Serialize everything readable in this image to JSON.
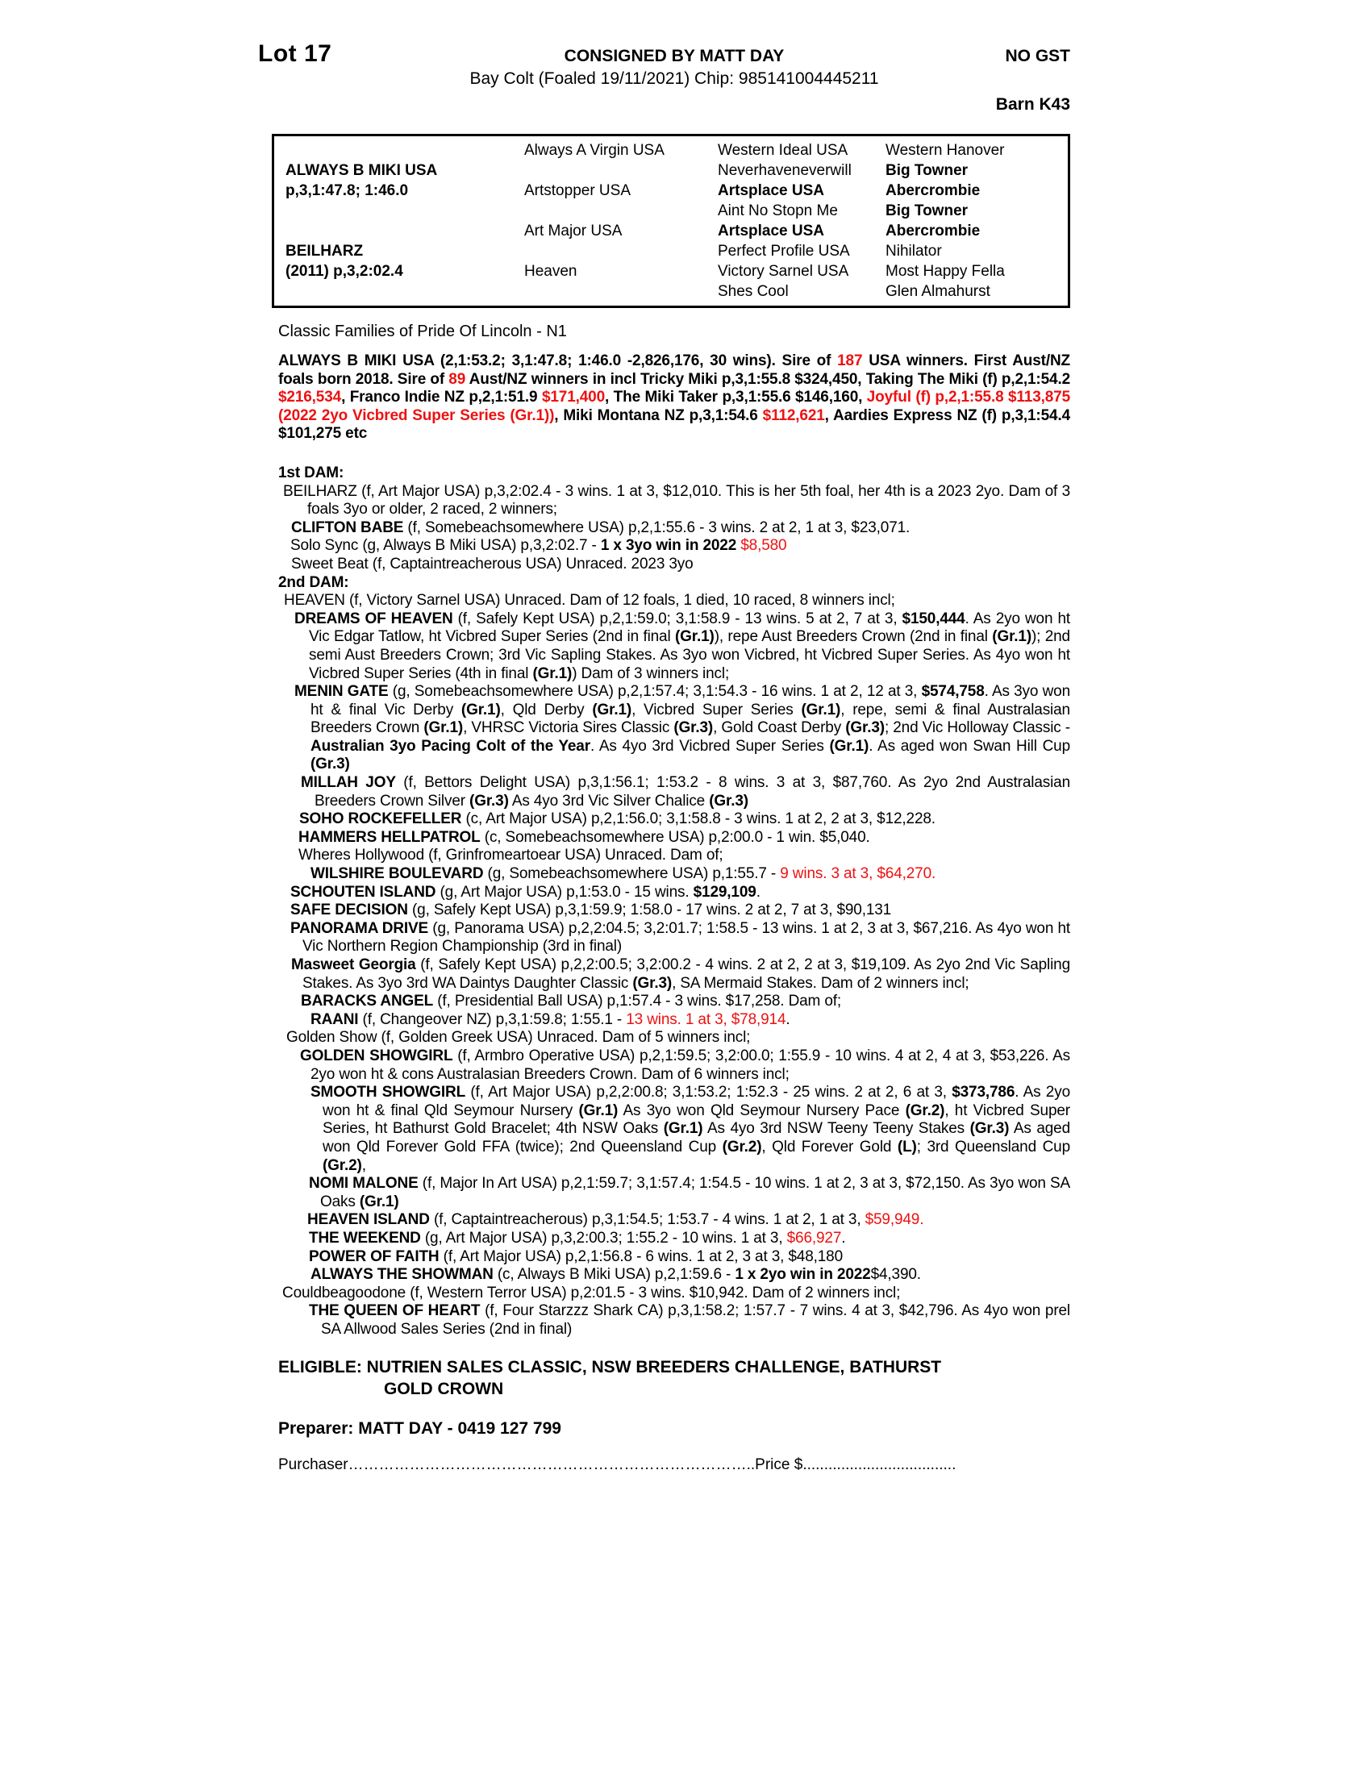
{
  "colors": {
    "red": "#ee1111"
  },
  "header": {
    "lot": "Lot 17",
    "consigned": "CONSIGNED BY MATT DAY",
    "no_gst": "NO GST",
    "subtitle": "Bay Colt (Foaled 19/11/2021) Chip: 985141004445211",
    "barn": "Barn K43"
  },
  "pedigree": {
    "rows": [
      {
        "c2": "Always A Virgin USA",
        "c3": "Western Ideal USA",
        "c4": "Western Hanover"
      },
      {
        "c1": "ALWAYS B MIKI USA",
        "c3": "Neverhaveneverwill",
        "c4": "Big Towner"
      },
      {
        "c1": "p,3,1:47.8; 1:46.0",
        "c2": "Artstopper USA",
        "c3": "Artsplace USA",
        "c4": "Abercrombie"
      },
      {
        "c3": "Aint No Stopn Me",
        "c4": "Big Towner"
      },
      {
        "c2": "Art Major USA",
        "c3": "Artsplace USA",
        "c4": "Abercrombie"
      },
      {
        "c1": "BEILHARZ",
        "c3": "Perfect Profile USA",
        "c4": "Nihilator"
      },
      {
        "c1": "(2011) p,3,2:02.4",
        "c2": "Heaven",
        "c3": "Victory Sarnel USA",
        "c4": "Most Happy Fella"
      },
      {
        "c3": "Shes Cool",
        "c4": "Glen Almahurst"
      }
    ]
  },
  "classic_families": "Classic Families of Pride Of Lincoln - N1",
  "paras": {
    "sire": {
      "segments": [
        {
          "t": "ALWAYS B MIKI USA (2,1:53.2; 3,1:47.8; 1:46.0 -2,826,176, 30 wins). Sire of ",
          "s": "b"
        },
        {
          "t": "187",
          "s": "br"
        },
        {
          "t": " USA winners. First Aust/NZ foals born 2018. Sire of ",
          "s": "b"
        },
        {
          "t": "89",
          "s": "br"
        },
        {
          "t": " Aust/NZ winners in incl Tricky Miki p,3,1:55.8 $324,450, Taking The Miki (f) p,2,1:54.2 ",
          "s": "b"
        },
        {
          "t": "$216,534",
          "s": "br"
        },
        {
          "t": ", Franco Indie NZ p,2,1:51.9 ",
          "s": "b"
        },
        {
          "t": "$171,400",
          "s": "br"
        },
        {
          "t": ", The Miki Taker p,3,1:55.6 $146,160, ",
          "s": "b"
        },
        {
          "t": "Joyful (f) p,2,1:55.8 $113,875 (2022 2yo Vicbred Super Series (Gr.1))",
          "s": "br"
        },
        {
          "t": ", Miki Montana NZ p,3,1:54.6 ",
          "s": "b"
        },
        {
          "t": "$112,621",
          "s": "br"
        },
        {
          "t": ", Aardies Express NZ (f) p,3,1:54.4 $101,275 etc",
          "s": "b"
        }
      ]
    },
    "dam1_heading": "1st DAM:",
    "beilharz": {
      "segments": [
        {
          "t": "BEILHARZ (f, Art Major USA) p,3,2:02.4 - 3 wins. 1 at 3, $12,010. This is her 5th foal, her 4th is a 2023 2yo. Dam of 3 foals 3yo or older, 2 raced, 2 winners;"
        }
      ]
    },
    "clifton_babe": {
      "segments": [
        {
          "t": "CLIFTON BABE",
          "s": "b"
        },
        {
          "t": " (f, Somebeachsomewhere USA) p,2,1:55.6 - 3 wins. 2 at 2, 1 at 3, $23,071."
        }
      ]
    },
    "solo_sync": {
      "segments": [
        {
          "t": "Solo Sync (g, Always B Miki USA) p,3,2:02.7 - "
        },
        {
          "t": "1 x 3yo win in 2022",
          "s": "b"
        },
        {
          "t": " $8,580",
          "s": "r"
        }
      ]
    },
    "sweet_beat": {
      "segments": [
        {
          "t": "Sweet Beat (f, Captaintreacherous USA) Unraced. 2023 3yo"
        }
      ]
    },
    "dam2_heading": "2nd DAM:",
    "heaven": {
      "segments": [
        {
          "t": "HEAVEN (f, Victory Sarnel USA) Unraced. Dam of 12 foals, 1 died, 10 raced, 8 winners incl;"
        }
      ]
    },
    "dreams_of_heaven": {
      "segments": [
        {
          "t": "DREAMS OF HEAVEN",
          "s": "b"
        },
        {
          "t": " (f, Safely Kept USA) p,2,1:59.0; 3,1:58.9 - 13 wins. 5 at 2, 7 at 3, "
        },
        {
          "t": "$150,444",
          "s": "b"
        },
        {
          "t": ". As 2yo won ht Vic Edgar Tatlow, ht Vicbred Super Series (2nd in final "
        },
        {
          "t": "(Gr.1)",
          "s": "b"
        },
        {
          "t": "), repe Aust Breeders Crown (2nd in final "
        },
        {
          "t": "(Gr.1)",
          "s": "b"
        },
        {
          "t": "); 2nd semi Aust Breeders Crown; 3rd Vic Sapling Stakes. As 3yo won Vicbred, ht Vicbred Super Series. As 4yo won ht Vicbred Super Series (4th in final "
        },
        {
          "t": "(Gr.1)",
          "s": "b"
        },
        {
          "t": ") Dam of 3 winners incl;"
        }
      ]
    },
    "menin_gate": {
      "segments": [
        {
          "t": "MENIN GATE",
          "s": "b"
        },
        {
          "t": " (g, Somebeachsomewhere USA) p,2,1:57.4; 3,1:54.3 - 16 wins. 1 at 2, 12 at 3, "
        },
        {
          "t": "$574,758",
          "s": "b"
        },
        {
          "t": ". As 3yo won ht & final Vic Derby "
        },
        {
          "t": "(Gr.1)",
          "s": "b"
        },
        {
          "t": ", Qld Derby "
        },
        {
          "t": "(Gr.1)",
          "s": "b"
        },
        {
          "t": ", Vicbred Super Series "
        },
        {
          "t": "(Gr.1)",
          "s": "b"
        },
        {
          "t": ", repe, semi & final Australasian Breeders Crown "
        },
        {
          "t": "(Gr.1)",
          "s": "b"
        },
        {
          "t": ", VHRSC Victoria Sires Classic "
        },
        {
          "t": "(Gr.3)",
          "s": "b"
        },
        {
          "t": ", Gold Coast Derby "
        },
        {
          "t": "(Gr.3)",
          "s": "b"
        },
        {
          "t": "; 2nd Vic Holloway Classic - "
        },
        {
          "t": "Australian 3yo Pacing Colt of the Year",
          "s": "b"
        },
        {
          "t": ". As 4yo 3rd Vicbred Super Series "
        },
        {
          "t": "(Gr.1)",
          "s": "b"
        },
        {
          "t": ". As aged won Swan Hill Cup "
        },
        {
          "t": "(Gr.3)",
          "s": "b"
        }
      ]
    },
    "millah_joy": {
      "segments": [
        {
          "t": "MILLAH JOY",
          "s": "b"
        },
        {
          "t": " (f, Bettors Delight USA) p,3,1:56.1; 1:53.2 - 8 wins. 3 at 3, $87,760. As 2yo 2nd Australasian Breeders Crown Silver "
        },
        {
          "t": "(Gr.3)",
          "s": "b"
        },
        {
          "t": " As 4yo 3rd Vic Silver Chalice "
        },
        {
          "t": "(Gr.3)",
          "s": "b"
        }
      ]
    },
    "soho_rockefeller": {
      "segments": [
        {
          "t": "SOHO ROCKEFELLER",
          "s": "b"
        },
        {
          "t": " (c, Art Major USA) p,2,1:56.0; 3,1:58.8 - 3 wins. 1 at 2, 2 at 3, $12,228."
        }
      ]
    },
    "hammers_hellpatrol": {
      "segments": [
        {
          "t": "HAMMERS HELLPATROL",
          "s": "b"
        },
        {
          "t": " (c, Somebeachsomewhere USA) p,2:00.0 - 1 win. $5,040."
        }
      ]
    },
    "wheres_hollywood": {
      "segments": [
        {
          "t": "Wheres Hollywood (f, Grinfromeartoear USA) Unraced. Dam of;"
        }
      ]
    },
    "wilshire_boulevard": {
      "segments": [
        {
          "t": "WILSHIRE BOULEVARD",
          "s": "b"
        },
        {
          "t": " (g, Somebeachsomewhere USA) p,1:55.7 - "
        },
        {
          "t": "9 wins. 3 at 3, $64,270.",
          "s": "r"
        }
      ]
    },
    "schouten_island": {
      "segments": [
        {
          "t": "SCHOUTEN ISLAND",
          "s": "b"
        },
        {
          "t": " (g, Art Major USA) p,1:53.0 - 15 wins. "
        },
        {
          "t": "$129,109",
          "s": "b"
        },
        {
          "t": "."
        }
      ]
    },
    "safe_decision": {
      "segments": [
        {
          "t": "SAFE DECISION",
          "s": "b"
        },
        {
          "t": " (g, Safely Kept USA) p,3,1:59.9; 1:58.0 - 17 wins. 2 at 2, 7 at 3, $90,131"
        }
      ]
    },
    "panorama_drive": {
      "segments": [
        {
          "t": "PANORAMA DRIVE",
          "s": "b"
        },
        {
          "t": " (g, Panorama USA) p,2,2:04.5; 3,2:01.7; 1:58.5 - 13 wins. 1 at 2, 3 at 3, $67,216. As 4yo won ht Vic Northern Region Championship (3rd in final)"
        }
      ]
    },
    "masweet_georgia": {
      "segments": [
        {
          "t": "Masweet Georgia",
          "s": "b"
        },
        {
          "t": " (f, Safely Kept USA) p,2,2:00.5; 3,2:00.2 - 4 wins. 2 at 2, 2 at 3, $19,109. As 2yo 2nd Vic Sapling Stakes. As 3yo 3rd WA Daintys Daughter Classic "
        },
        {
          "t": "(Gr.3)",
          "s": "b"
        },
        {
          "t": ", SA Mermaid Stakes. Dam of 2 winners incl;"
        }
      ]
    },
    "baracks_angel": {
      "segments": [
        {
          "t": "BARACKS ANGEL",
          "s": "b"
        },
        {
          "t": " (f, Presidential Ball USA) p,1:57.4 - 3 wins. $17,258. Dam of;"
        }
      ]
    },
    "raani": {
      "segments": [
        {
          "t": "RAANI",
          "s": "b"
        },
        {
          "t": " (f, Changeover NZ) p,3,1:59.8; 1:55.1 - "
        },
        {
          "t": "13 wins. 1 at 3, $78,914",
          "s": "r"
        },
        {
          "t": "."
        }
      ]
    },
    "golden_show": {
      "segments": [
        {
          "t": "Golden Show (f, Golden Greek USA) Unraced. Dam of 5 winners incl;"
        }
      ]
    },
    "golden_showgirl": {
      "segments": [
        {
          "t": "GOLDEN SHOWGIRL",
          "s": "b"
        },
        {
          "t": " (f, Armbro Operative USA) p,2,1:59.5; 3,2:00.0; 1:55.9 - 10 wins. 4 at 2, 4 at 3, $53,226. As 2yo won ht & cons Australasian Breeders Crown. Dam of 6 winners incl;"
        }
      ]
    },
    "smooth_showgirl": {
      "segments": [
        {
          "t": "SMOOTH SHOWGIRL",
          "s": "b"
        },
        {
          "t": " (f, Art Major USA) p,2,2:00.8; 3,1:53.2; 1:52.3 - 25 wins. 2 at 2, 6 at 3, "
        },
        {
          "t": "$373,786",
          "s": "b"
        },
        {
          "t": ". As 2yo won ht & final Qld Seymour Nursery "
        },
        {
          "t": "(Gr.1)",
          "s": "b"
        },
        {
          "t": " As 3yo won Qld Seymour Nursery Pace "
        },
        {
          "t": "(Gr.2)",
          "s": "b"
        },
        {
          "t": ", ht Vicbred Super Series, ht Bathurst Gold Bracelet; 4th NSW Oaks "
        },
        {
          "t": "(Gr.1)",
          "s": "b"
        },
        {
          "t": " As 4yo 3rd NSW Teeny Teeny Stakes "
        },
        {
          "t": "(Gr.3)",
          "s": "b"
        },
        {
          "t": " As aged won Qld Forever Gold FFA (twice); 2nd Queensland Cup "
        },
        {
          "t": "(Gr.2)",
          "s": "b"
        },
        {
          "t": ", Qld Forever Gold "
        },
        {
          "t": "(L)",
          "s": "b"
        },
        {
          "t": "; 3rd Queensland Cup "
        },
        {
          "t": "(Gr.2)",
          "s": "b"
        },
        {
          "t": ","
        }
      ]
    },
    "nomi_malone": {
      "segments": [
        {
          "t": "NOMI MALONE",
          "s": "b"
        },
        {
          "t": " (f, Major In Art USA) p,2,1:59.7; 3,1:57.4; 1:54.5 - 10 wins. 1 at 2, 3 at 3, $72,150. As 3yo won SA Oaks "
        },
        {
          "t": "(Gr.1)",
          "s": "b"
        }
      ]
    },
    "heaven_island": {
      "segments": [
        {
          "t": "HEAVEN ISLAND",
          "s": "b"
        },
        {
          "t": " (f, Captaintreacherous) p,3,1:54.5; 1:53.7 - 4 wins. 1 at 2, 1 at 3, "
        },
        {
          "t": "$59,949.",
          "s": "r"
        }
      ]
    },
    "the_weekend": {
      "segments": [
        {
          "t": "THE WEEKEND",
          "s": "b"
        },
        {
          "t": " (g, Art Major USA) p,3,2:00.3; 1:55.2 - 10 wins. 1 at 3, "
        },
        {
          "t": "$66,927",
          "s": "r"
        },
        {
          "t": "."
        }
      ]
    },
    "power_of_faith": {
      "segments": [
        {
          "t": "POWER OF FAITH",
          "s": "b"
        },
        {
          "t": " (f, Art Major USA) p,2,1:56.8 - 6 wins. 1 at 2, 3 at 3, $48,180"
        }
      ]
    },
    "always_the_showman": {
      "segments": [
        {
          "t": "ALWAYS THE SHOWMAN",
          "s": "b"
        },
        {
          "t": " (c, Always B Miki USA) p,2,1:59.6 - "
        },
        {
          "t": "1 x 2yo win in 2022",
          "s": "b"
        },
        {
          "t": "$4,390."
        }
      ]
    },
    "couldbeagoodone": {
      "segments": [
        {
          "t": "Couldbeagoodone (f, Western Terror USA) p,2:01.5 - 3 wins. $10,942. Dam of 2 winners incl;"
        }
      ]
    },
    "queen_of_heart": {
      "segments": [
        {
          "t": "THE QUEEN OF HEART",
          "s": "b"
        },
        {
          "t": " (f, Four Starzzz Shark CA) p,3,1:58.2; 1:57.7 - 7 wins. 4 at 3, $42,796. As 4yo won prel SA Allwood Sales Series (2nd in final)"
        }
      ]
    }
  },
  "eligible": {
    "line1": "ELIGIBLE: NUTRIEN SALES CLASSIC, NSW BREEDERS CHALLENGE, BATHURST",
    "line2": "GOLD CROWN"
  },
  "preparer": "Preparer: MATT DAY - 0419 127 799",
  "purchaser_line": {
    "segments": [
      {
        "t": "Purchaser"
      },
      {
        "t": "…………………………………………………………………….."
      },
      {
        "t": "Price $"
      },
      {
        "t": "...................................."
      }
    ]
  }
}
